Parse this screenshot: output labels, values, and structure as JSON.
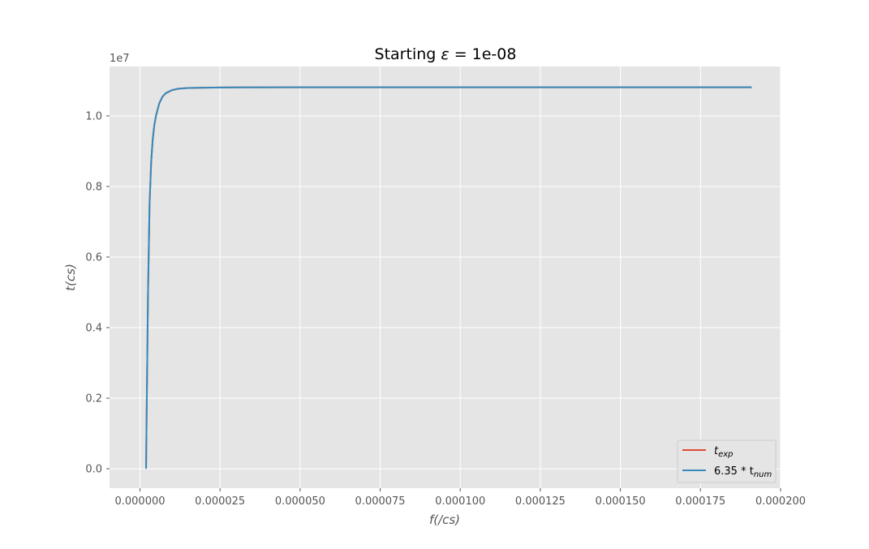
{
  "chart_data": {
    "type": "line",
    "title_prefix": "Starting ",
    "title_symbol": "ε",
    "title_suffix": " = 1e-08",
    "xlabel_var": "f",
    "xlabel_unit": "(/cs)",
    "ylabel_var": "t",
    "ylabel_unit": "(cs)",
    "y_offset_label": "1e7",
    "xlim": [
      -9.5e-06,
      0.0002
    ],
    "ylim": [
      -550000,
      11400000
    ],
    "x_ticks": [
      0.0,
      2.5e-05,
      5e-05,
      7.5e-05,
      0.0001,
      0.000125,
      0.00015,
      0.000175,
      0.0002
    ],
    "x_tick_labels": [
      "0.000000",
      "0.000025",
      "0.000050",
      "0.000075",
      "0.000100",
      "0.000125",
      "0.000150",
      "0.000175",
      "0.000200"
    ],
    "y_ticks": [
      0,
      2000000,
      4000000,
      6000000,
      8000000,
      10000000
    ],
    "y_tick_labels": [
      "0.0",
      "0.2",
      "0.4",
      "0.6",
      "0.8",
      "1.0"
    ],
    "grid": true,
    "legend_position": "lower-right",
    "series": [
      {
        "name_main": "t",
        "name_sub": "exp",
        "color": "#E24A33",
        "x": [
          1.9e-06,
          2.5e-06,
          3e-06,
          3.5e-06,
          4e-06,
          4.5e-06,
          5e-06,
          6e-06,
          7e-06,
          8e-06,
          1e-05,
          1.2e-05,
          1.5e-05,
          2e-05,
          2.5e-05,
          3e-05,
          5e-05,
          0.0001,
          0.000191
        ],
        "y": [
          0,
          4900000,
          7500000,
          8700000,
          9350000,
          9750000,
          10000000,
          10350000,
          10540000,
          10640000,
          10730000,
          10770000,
          10790000,
          10800000,
          10805000,
          10808000,
          10810000,
          10810000,
          10810000
        ]
      },
      {
        "name_main": "6.35 * t",
        "name_sub": "num",
        "color": "#348ABD",
        "x": [
          1.9e-06,
          2.5e-06,
          3e-06,
          3.5e-06,
          4e-06,
          4.5e-06,
          5e-06,
          6e-06,
          7e-06,
          8e-06,
          1e-05,
          1.2e-05,
          1.5e-05,
          2e-05,
          2.5e-05,
          3e-05,
          5e-05,
          0.0001,
          0.000191
        ],
        "y": [
          0,
          4900000,
          7500000,
          8700000,
          9350000,
          9750000,
          10000000,
          10350000,
          10540000,
          10640000,
          10730000,
          10770000,
          10790000,
          10800000,
          10805000,
          10808000,
          10810000,
          10810000,
          10810000
        ]
      }
    ],
    "colors": {
      "plot_background": "#E5E5E5",
      "grid": "#FFFFFF",
      "tick_text": "#555555"
    }
  }
}
